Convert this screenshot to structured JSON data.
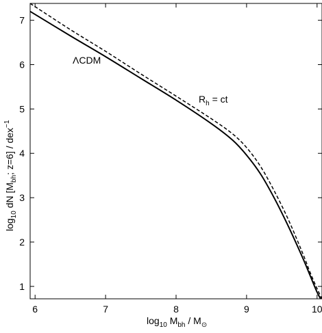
{
  "chart_data": {
    "type": "line",
    "title": "",
    "xlabel": {
      "main": "log",
      "sub1": "10",
      "mid": " M",
      "sub2": "bh",
      "tail": " / M",
      "sub3": "⊙"
    },
    "ylabel": {
      "main": "log",
      "sub1": "10",
      "mid": " dN [M",
      "sub2": "bh",
      "tail": "; z=6] / dex",
      "sup": "−1"
    },
    "xlim": [
      5.93,
      10.07
    ],
    "ylim": [
      0.72,
      7.38
    ],
    "x_ticks": [
      6,
      7,
      8,
      9,
      10
    ],
    "x_tick_labels": [
      "6",
      "7",
      "8",
      "9",
      "10"
    ],
    "y_ticks": [
      1,
      2,
      3,
      4,
      5,
      6,
      7
    ],
    "y_tick_labels": [
      "1",
      "2",
      "3",
      "4",
      "5",
      "6",
      "7"
    ],
    "grid": false,
    "series": [
      {
        "name": "ΛCDM",
        "style": "solid",
        "x": [
          5.93,
          6.5,
          7.0,
          7.5,
          8.0,
          8.5,
          8.8,
          9.0,
          9.2,
          9.4,
          9.6,
          9.8,
          9.9,
          10.0,
          10.05
        ],
        "y": [
          7.2,
          6.65,
          6.18,
          5.69,
          5.2,
          4.67,
          4.3,
          3.96,
          3.53,
          2.97,
          2.33,
          1.63,
          1.25,
          0.87,
          0.72
        ]
      },
      {
        "name": "R_h = ct",
        "style": "dashed",
        "x": [
          5.93,
          6.5,
          7.0,
          7.5,
          8.0,
          8.5,
          8.8,
          9.0,
          9.2,
          9.4,
          9.6,
          9.8,
          9.9,
          10.0,
          10.07
        ],
        "y": [
          7.38,
          6.79,
          6.3,
          5.79,
          5.29,
          4.78,
          4.44,
          4.13,
          3.7,
          3.13,
          2.48,
          1.73,
          1.32,
          0.95,
          0.72
        ]
      }
    ],
    "annotations": [
      {
        "text": "ΛCDM"
      },
      {
        "text_main": "R",
        "text_sub": "h",
        "text_tail": " = ct"
      }
    ]
  }
}
